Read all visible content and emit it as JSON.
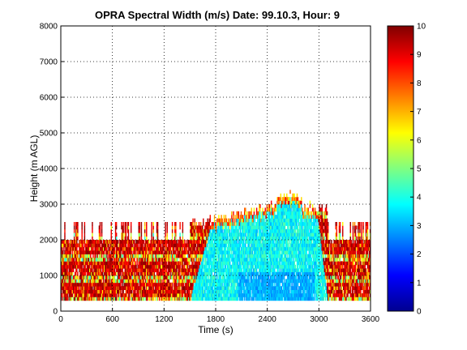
{
  "chart_data": {
    "type": "heatmap",
    "title": "OPRA Spectral Width (m/s)  Date: 99.10.3, Hour: 9",
    "xlabel": "Time (s)",
    "ylabel": "Height (m AGL)",
    "xlim": [
      0,
      3600
    ],
    "ylim": [
      0,
      8000
    ],
    "x_ticks": [
      "0",
      "600",
      "1200",
      "1800",
      "2400",
      "3000",
      "3600"
    ],
    "y_ticks": [
      "0",
      "1000",
      "2000",
      "3000",
      "4000",
      "5000",
      "6000",
      "7000",
      "8000"
    ],
    "grid": true,
    "colormap": "jet",
    "colorbar": {
      "range": [
        0,
        10
      ],
      "ticks": [
        "0",
        "1",
        "2",
        "3",
        "4",
        "5",
        "6",
        "7",
        "8",
        "9",
        "10"
      ],
      "placement": "right"
    },
    "gate_spacing_m": 100,
    "regions": [
      {
        "x": [
          0,
          1500
        ],
        "y": [
          300,
          2000
        ],
        "value": 9.3,
        "description": "high spectral width layers"
      },
      {
        "x": [
          1500,
          3100
        ],
        "y": [
          300,
          2900
        ],
        "value": 3.8,
        "description": "moderate spectral width"
      },
      {
        "x": [
          2100,
          2900
        ],
        "y": [
          300,
          1000
        ],
        "value": 3.0,
        "description": "lower spectral width core"
      },
      {
        "x": [
          3100,
          3600
        ],
        "y": [
          300,
          2000
        ],
        "value": 9.3,
        "description": "high spectral width layers"
      }
    ]
  }
}
